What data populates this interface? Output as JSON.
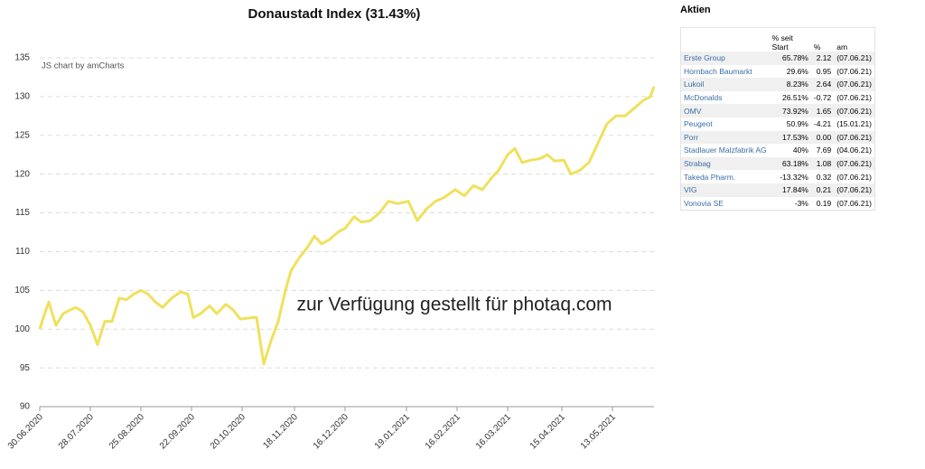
{
  "chart_data": {
    "type": "line",
    "title": "Donaustadt Index (31.43%)",
    "credit": "JS chart by amCharts",
    "watermark": "zur Verfügung gestellt für photaq.com",
    "x": [
      "30.06.2020",
      "02.07.2020",
      "05.07.2020",
      "09.07.2020",
      "13.07.2020",
      "17.07.2020",
      "20.07.2020",
      "24.07.2020",
      "28.07.2020",
      "01.08.2020",
      "05.08.2020",
      "09.08.2020",
      "13.08.2020",
      "17.08.2020",
      "21.08.2020",
      "25.08.2020",
      "29.08.2020",
      "02.09.2020",
      "06.09.2020",
      "11.09.2020",
      "16.09.2020",
      "20.09.2020",
      "23.09.2020",
      "27.09.2020",
      "02.10.2020",
      "06.10.2020",
      "11.10.2020",
      "15.10.2020",
      "19.10.2020",
      "26.10.2020",
      "28.10.2020",
      "01.11.2020",
      "05.11.2020",
      "09.11.2020",
      "13.11.2020",
      "16.11.2020",
      "20.11.2020",
      "25.11.2020",
      "29.11.2020",
      "03.12.2020",
      "07.12.2020",
      "12.12.2020",
      "16.12.2020",
      "21.12.2020",
      "25.12.2020",
      "30.12.2020",
      "04.01.2021",
      "09.01.2021",
      "14.01.2021",
      "20.01.2021",
      "25.01.2021",
      "30.01.2021",
      "04.02.2021",
      "09.02.2021",
      "15.02.2021",
      "20.02.2021",
      "25.02.2021",
      "02.03.2021",
      "07.03.2021",
      "11.03.2021",
      "16.03.2021",
      "20.03.2021",
      "24.03.2021",
      "29.03.2021",
      "03.04.2021",
      "07.04.2021",
      "11.04.2021",
      "16.04.2021",
      "20.04.2021",
      "25.04.2021",
      "30.04.2021",
      "05.05.2021",
      "10.05.2021",
      "15.05.2021",
      "20.05.2021",
      "25.05.2021",
      "30.05.2021",
      "03.06.2021",
      "05.06.2021"
    ],
    "series": [
      {
        "name": "Donaustadt Index",
        "color": "#efe15c",
        "values": [
          100,
          101.5,
          103.5,
          100.5,
          102,
          102.5,
          102.8,
          102.2,
          100.5,
          98,
          101,
          101,
          104,
          103.8,
          104.5,
          105,
          104.5,
          103.5,
          102.8,
          104,
          104.8,
          104.5,
          101.5,
          102,
          103,
          102,
          103.2,
          102.5,
          101.3,
          101.5,
          101.5,
          95.5,
          98.5,
          101,
          105,
          107.5,
          109,
          110.5,
          112,
          111,
          111.5,
          112.5,
          113,
          114.5,
          113.8,
          114,
          115,
          116.5,
          116.2,
          116.5,
          114,
          115.5,
          116.5,
          117,
          118,
          117.2,
          118.5,
          118,
          119.5,
          120.5,
          122.5,
          123.3,
          121.5,
          121.8,
          122,
          122.5,
          121.7,
          121.8,
          120,
          120.5,
          121.5,
          124,
          126.5,
          127.5,
          127.5,
          128.5,
          129.5,
          130,
          131.3
        ]
      }
    ],
    "xlim": [
      "30.06.2020",
      "05.06.2021"
    ],
    "xticks": [
      "30.06.2020",
      "28.07.2020",
      "25.08.2020",
      "22.09.2020",
      "20.10.2020",
      "18.11.2020",
      "16.12.2020",
      "19.01.2021",
      "16.02.2021",
      "16.03.2021",
      "15.04.2021",
      "13.05.2021"
    ],
    "ylim": [
      90,
      135
    ],
    "yticks": [
      90,
      95,
      100,
      105,
      110,
      115,
      120,
      125,
      130,
      135
    ],
    "grid": true
  },
  "table": {
    "title": "Aktien",
    "columns": [
      "",
      "% seit Start",
      "%",
      "am"
    ],
    "rows": [
      [
        "Erste Group",
        "65.78%",
        "2.12",
        "(07.06.21)"
      ],
      [
        "Hornbach Baumarkt",
        "29.6%",
        "0.95",
        "(07.06.21)"
      ],
      [
        "Lukoil",
        "8.23%",
        "2.64",
        "(07.06.21)"
      ],
      [
        "McDonalds",
        "26.51%",
        "-0.72",
        "(07.06.21)"
      ],
      [
        "OMV",
        "73.92%",
        "1.65",
        "(07.06.21)"
      ],
      [
        "Peugeot",
        "50.9%",
        "-4.21",
        "(15.01.21)"
      ],
      [
        "Porr",
        "17.53%",
        "0.00",
        "(07.06.21)"
      ],
      [
        "Stadlauer Malzfabrik AG",
        "40%",
        "7.69",
        "(04.06.21)"
      ],
      [
        "Strabag",
        "63.18%",
        "1.08",
        "(07.06.21)"
      ],
      [
        "Takeda Pharm.",
        "-13.32%",
        "0.32",
        "(07.06.21)"
      ],
      [
        "VIG",
        "17.84%",
        "0.21",
        "(07.06.21)"
      ],
      [
        "Vonovia SE",
        "-3%",
        "0.19",
        "(07.06.21)"
      ]
    ]
  }
}
